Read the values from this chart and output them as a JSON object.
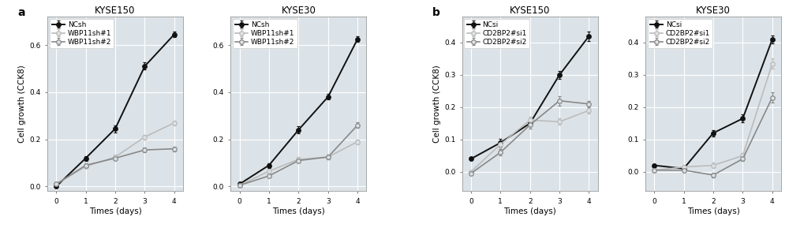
{
  "panel_a": {
    "label": "a",
    "plots": [
      {
        "title": "KYSE150",
        "xlabel": "Times (days)",
        "ylabel": "Cell growth (CCK8)",
        "xlim": [
          -0.3,
          4.3
        ],
        "ylim": [
          -0.02,
          0.72
        ],
        "yticks": [
          0.0,
          0.2,
          0.4,
          0.6
        ],
        "series": [
          {
            "label": "NCsh",
            "color": "#111111",
            "marker": "o",
            "markersize": 4,
            "linewidth": 1.4,
            "filled": true,
            "x": [
              0,
              1,
              2,
              3,
              4
            ],
            "y": [
              0.0,
              0.12,
              0.245,
              0.51,
              0.645
            ],
            "yerr": [
              0.005,
              0.01,
              0.015,
              0.015,
              0.012
            ]
          },
          {
            "label": "WBP11sh#1",
            "color": "#bbbbbb",
            "marker": "o",
            "markersize": 4,
            "linewidth": 1.2,
            "filled": false,
            "x": [
              0,
              1,
              2,
              3,
              4
            ],
            "y": [
              0.01,
              0.085,
              0.125,
              0.21,
              0.27
            ],
            "yerr": [
              0.005,
              0.008,
              0.01,
              0.01,
              0.01
            ]
          },
          {
            "label": "WBP11sh#2",
            "color": "#888888",
            "marker": "o",
            "markersize": 4,
            "linewidth": 1.2,
            "filled": false,
            "x": [
              0,
              1,
              2,
              3,
              4
            ],
            "y": [
              0.01,
              0.09,
              0.12,
              0.155,
              0.16
            ],
            "yerr": [
              0.005,
              0.008,
              0.009,
              0.01,
              0.01
            ]
          }
        ]
      },
      {
        "title": "KYSE30",
        "xlabel": "Times (days)",
        "ylabel": "",
        "xlim": [
          -0.3,
          4.3
        ],
        "ylim": [
          -0.02,
          0.72
        ],
        "yticks": [
          0.0,
          0.2,
          0.4,
          0.6
        ],
        "series": [
          {
            "label": "NCsh",
            "color": "#111111",
            "marker": "o",
            "markersize": 4,
            "linewidth": 1.4,
            "filled": true,
            "x": [
              0,
              1,
              2,
              3,
              4
            ],
            "y": [
              0.01,
              0.09,
              0.24,
              0.38,
              0.625
            ],
            "yerr": [
              0.005,
              0.01,
              0.015,
              0.012,
              0.012
            ]
          },
          {
            "label": "WBP11sh#1",
            "color": "#bbbbbb",
            "marker": "o",
            "markersize": 4,
            "linewidth": 1.2,
            "filled": false,
            "x": [
              0,
              1,
              2,
              3,
              4
            ],
            "y": [
              0.005,
              0.065,
              0.115,
              0.125,
              0.19
            ],
            "yerr": [
              0.004,
              0.007,
              0.009,
              0.01,
              0.01
            ]
          },
          {
            "label": "WBP11sh#2",
            "color": "#888888",
            "marker": "o",
            "markersize": 4,
            "linewidth": 1.2,
            "filled": false,
            "x": [
              0,
              1,
              2,
              3,
              4
            ],
            "y": [
              0.005,
              0.045,
              0.11,
              0.125,
              0.26
            ],
            "yerr": [
              0.004,
              0.006,
              0.009,
              0.01,
              0.012
            ]
          }
        ]
      }
    ]
  },
  "panel_b": {
    "label": "b",
    "plots": [
      {
        "title": "KYSE150",
        "xlabel": "Times (days)",
        "ylabel": "Cell growth (CCK8)",
        "xlim": [
          -0.3,
          4.3
        ],
        "ylim": [
          -0.06,
          0.48
        ],
        "yticks": [
          0.0,
          0.1,
          0.2,
          0.3,
          0.4
        ],
        "series": [
          {
            "label": "NCsi",
            "color": "#111111",
            "marker": "o",
            "markersize": 4,
            "linewidth": 1.4,
            "filled": true,
            "x": [
              0,
              1,
              2,
              3,
              4
            ],
            "y": [
              0.04,
              0.09,
              0.15,
              0.3,
              0.42
            ],
            "yerr": [
              0.005,
              0.012,
              0.01,
              0.012,
              0.015
            ]
          },
          {
            "label": "CD2BP2#si1",
            "color": "#bbbbbb",
            "marker": "o",
            "markersize": 4,
            "linewidth": 1.2,
            "filled": false,
            "x": [
              0,
              1,
              2,
              3,
              4
            ],
            "y": [
              0.0,
              0.085,
              0.16,
              0.155,
              0.19
            ],
            "yerr": [
              0.005,
              0.012,
              0.01,
              0.01,
              0.01
            ]
          },
          {
            "label": "CD2BP2#si2",
            "color": "#888888",
            "marker": "o",
            "markersize": 4,
            "linewidth": 1.2,
            "filled": false,
            "x": [
              0,
              1,
              2,
              3,
              4
            ],
            "y": [
              -0.005,
              0.06,
              0.145,
              0.22,
              0.21
            ],
            "yerr": [
              0.005,
              0.01,
              0.01,
              0.015,
              0.01
            ]
          }
        ]
      },
      {
        "title": "KYSE30",
        "xlabel": "Times (days)",
        "ylabel": "",
        "xlim": [
          -0.3,
          4.3
        ],
        "ylim": [
          -0.06,
          0.48
        ],
        "yticks": [
          0.0,
          0.1,
          0.2,
          0.3,
          0.4
        ],
        "series": [
          {
            "label": "NCsi",
            "color": "#111111",
            "marker": "o",
            "markersize": 4,
            "linewidth": 1.4,
            "filled": true,
            "x": [
              0,
              1,
              2,
              3,
              4
            ],
            "y": [
              0.02,
              0.01,
              0.12,
              0.165,
              0.41
            ],
            "yerr": [
              0.005,
              0.008,
              0.01,
              0.012,
              0.012
            ]
          },
          {
            "label": "CD2BP2#si1",
            "color": "#bbbbbb",
            "marker": "o",
            "markersize": 4,
            "linewidth": 1.2,
            "filled": false,
            "x": [
              0,
              1,
              2,
              3,
              4
            ],
            "y": [
              0.005,
              0.015,
              0.02,
              0.05,
              0.335
            ],
            "yerr": [
              0.004,
              0.006,
              0.008,
              0.008,
              0.015
            ]
          },
          {
            "label": "CD2BP2#si2",
            "color": "#888888",
            "marker": "o",
            "markersize": 4,
            "linewidth": 1.2,
            "filled": false,
            "x": [
              0,
              1,
              2,
              3,
              4
            ],
            "y": [
              0.005,
              0.005,
              -0.01,
              0.04,
              0.23
            ],
            "yerr": [
              0.004,
              0.006,
              0.007,
              0.007,
              0.015
            ]
          }
        ]
      }
    ]
  },
  "fig_bg_color": "#ffffff",
  "plot_bg_color": "#dce3e8",
  "grid_color": "#ffffff",
  "tick_fontsize": 6.5,
  "label_fontsize": 7.5,
  "title_fontsize": 8.5,
  "legend_fontsize": 6.5
}
